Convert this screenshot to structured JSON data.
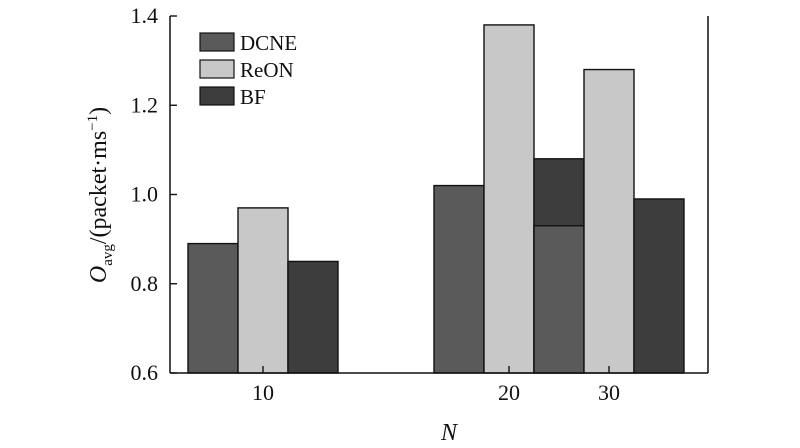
{
  "chart_data": {
    "type": "bar",
    "categories": [
      "10",
      "20",
      "30"
    ],
    "series": [
      {
        "name": "DCNE",
        "values": [
          0.89,
          1.02,
          0.93
        ],
        "color": "#5a5a5a"
      },
      {
        "name": "ReON",
        "values": [
          0.97,
          1.38,
          1.28
        ],
        "color": "#c8c8c8"
      },
      {
        "name": "BF",
        "values": [
          0.85,
          1.08,
          0.99
        ],
        "color": "#3d3d3d"
      }
    ],
    "ylim": [
      0.6,
      1.4
    ],
    "yticks": [
      "0.6",
      "0.8",
      "1.0",
      "1.2",
      "1.4"
    ],
    "xlabel": "N",
    "ylabel": {
      "main": "O",
      "subscript": "avg",
      "unit_pre": "/(packet·ms",
      "superscript": "−1",
      "unit_post": ")"
    },
    "legend_position": "top-left",
    "grid": false
  }
}
